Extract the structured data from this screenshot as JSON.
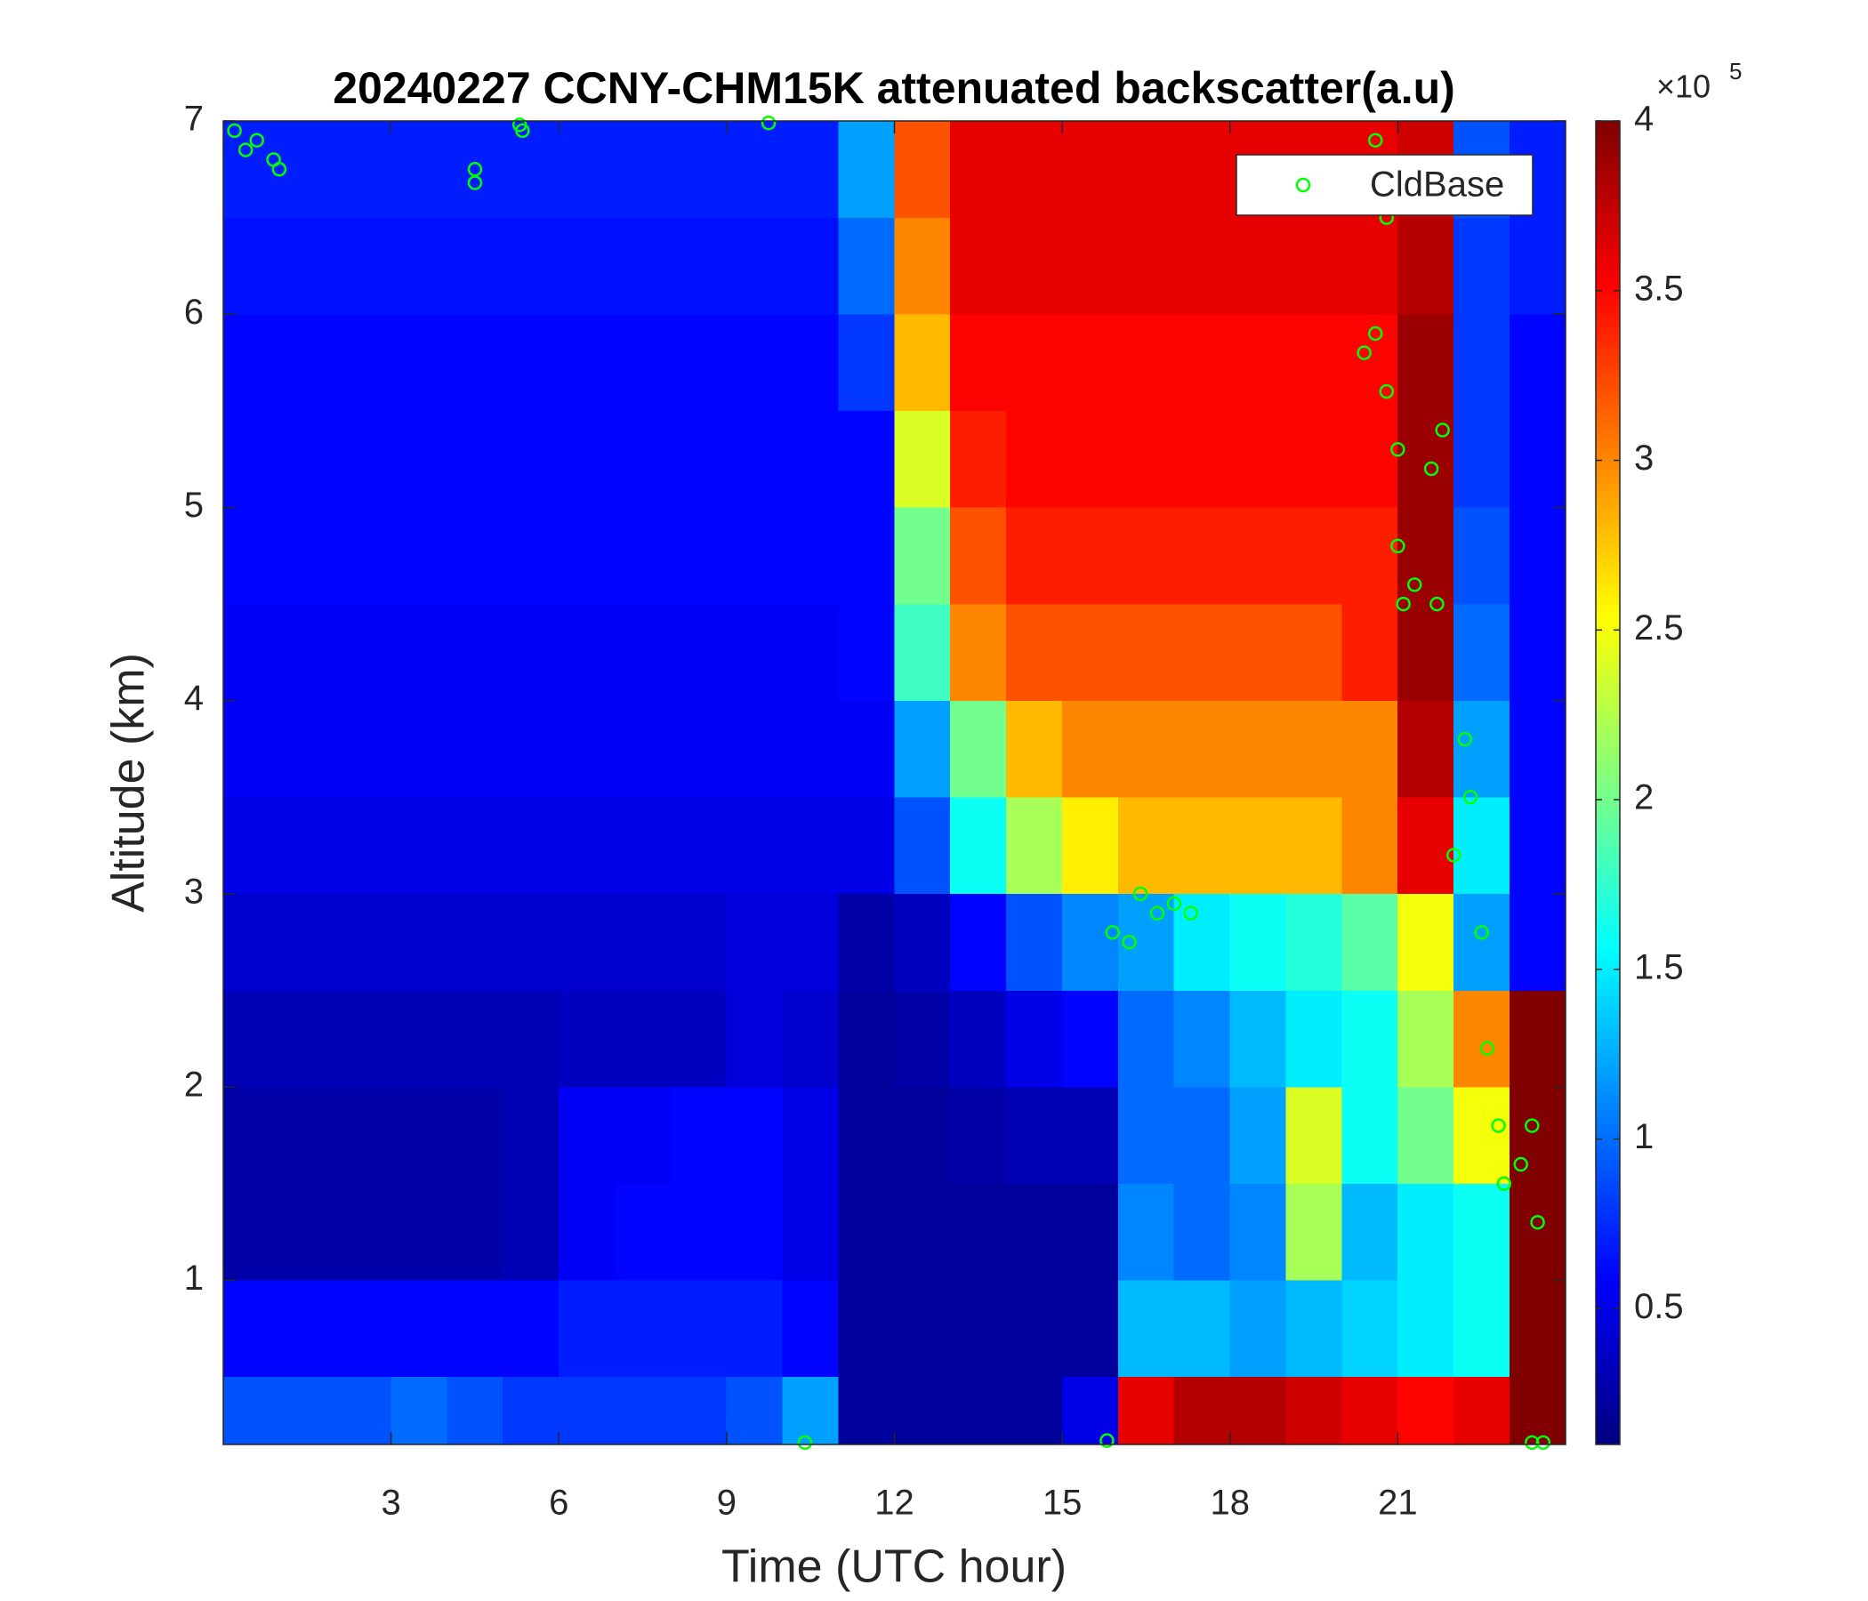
{
  "chart_data": {
    "type": "heatmap",
    "title": "20240227 CCNY-CHM15K attenuated backscatter(a.u)",
    "x_label": "Time (UTC hour)",
    "y_label": "Altitude (km)",
    "xlim": [
      0,
      24
    ],
    "xticks": [
      3,
      6,
      9,
      12,
      15,
      18,
      21
    ],
    "ylim": [
      0.15,
      7
    ],
    "yticks": [
      1,
      2,
      3,
      4,
      5,
      6,
      7
    ],
    "colormap": "jet",
    "clim": [
      0.1,
      4
    ],
    "cticks": [
      0.5,
      1,
      1.5,
      2,
      2.5,
      3,
      3.5,
      4
    ],
    "colorbar_multiplier": {
      "base": "×10",
      "exponent": "5"
    },
    "xbins": [
      0,
      1,
      2,
      3,
      4,
      5,
      6,
      7,
      8,
      9,
      10,
      11,
      12,
      13,
      14,
      15,
      16,
      17,
      18,
      19,
      20,
      21,
      22,
      23,
      24
    ],
    "ybins": [
      0.15,
      0.5,
      1,
      1.5,
      2,
      2.5,
      3,
      3.5,
      4,
      4.5,
      5,
      5.5,
      6,
      6.5,
      7
    ],
    "z": [
      [
        0.9,
        0.9,
        0.9,
        1.0,
        0.9,
        0.8,
        0.8,
        0.8,
        0.8,
        0.9,
        1.2,
        0.2,
        0.2,
        0.2,
        0.2,
        0.5,
        3.6,
        3.8,
        3.8,
        3.7,
        3.6,
        3.5,
        3.6,
        4
      ],
      [
        0.6,
        0.6,
        0.6,
        0.6,
        0.6,
        0.6,
        0.7,
        0.7,
        0.7,
        0.7,
        0.6,
        0.2,
        0.2,
        0.2,
        0.2,
        0.2,
        1.3,
        1.3,
        1.2,
        1.3,
        1.4,
        1.5,
        1.6,
        4
      ],
      [
        0.25,
        0.25,
        0.25,
        0.25,
        0.25,
        0.3,
        0.55,
        0.6,
        0.6,
        0.6,
        0.5,
        0.2,
        0.2,
        0.2,
        0.2,
        0.2,
        1.1,
        1.0,
        1.1,
        2.2,
        1.3,
        1.5,
        1.6,
        4
      ],
      [
        0.25,
        0.25,
        0.25,
        0.25,
        0.25,
        0.3,
        0.55,
        0.55,
        0.6,
        0.6,
        0.5,
        0.2,
        0.2,
        0.25,
        0.3,
        0.3,
        1.0,
        1.0,
        1.2,
        2.4,
        1.6,
        2.0,
        2.5,
        4
      ],
      [
        0.3,
        0.3,
        0.3,
        0.3,
        0.3,
        0.3,
        0.35,
        0.35,
        0.35,
        0.45,
        0.4,
        0.2,
        0.25,
        0.35,
        0.5,
        0.6,
        1.0,
        1.1,
        1.3,
        1.5,
        1.6,
        2.2,
        3.0,
        4
      ],
      [
        0.4,
        0.4,
        0.4,
        0.4,
        0.4,
        0.4,
        0.4,
        0.4,
        0.4,
        0.45,
        0.45,
        0.25,
        0.35,
        0.6,
        0.9,
        1.1,
        1.2,
        1.5,
        1.6,
        1.7,
        1.9,
        2.5,
        1.2,
        0.6
      ],
      [
        0.5,
        0.5,
        0.5,
        0.5,
        0.5,
        0.5,
        0.5,
        0.5,
        0.5,
        0.5,
        0.5,
        0.5,
        0.9,
        1.6,
        2.2,
        2.6,
        2.8,
        2.8,
        2.8,
        2.8,
        3.0,
        3.6,
        1.5,
        0.6
      ],
      [
        0.55,
        0.55,
        0.55,
        0.55,
        0.55,
        0.55,
        0.55,
        0.55,
        0.55,
        0.55,
        0.55,
        0.55,
        1.2,
        2.0,
        2.8,
        3.0,
        3.0,
        3.0,
        3.0,
        3.0,
        3.0,
        3.8,
        1.2,
        0.6
      ],
      [
        0.55,
        0.55,
        0.55,
        0.55,
        0.55,
        0.55,
        0.55,
        0.55,
        0.55,
        0.55,
        0.55,
        0.6,
        1.8,
        3.0,
        3.2,
        3.2,
        3.2,
        3.2,
        3.2,
        3.2,
        3.4,
        3.9,
        1.0,
        0.6
      ],
      [
        0.6,
        0.6,
        0.6,
        0.6,
        0.6,
        0.6,
        0.6,
        0.6,
        0.6,
        0.6,
        0.6,
        0.6,
        2.0,
        3.2,
        3.4,
        3.4,
        3.4,
        3.4,
        3.4,
        3.4,
        3.4,
        3.9,
        0.9,
        0.6
      ],
      [
        0.6,
        0.6,
        0.6,
        0.6,
        0.6,
        0.6,
        0.6,
        0.6,
        0.6,
        0.6,
        0.6,
        0.6,
        2.4,
        3.4,
        3.5,
        3.5,
        3.5,
        3.5,
        3.5,
        3.5,
        3.5,
        3.9,
        0.8,
        0.6
      ],
      [
        0.6,
        0.6,
        0.6,
        0.6,
        0.6,
        0.6,
        0.6,
        0.6,
        0.6,
        0.6,
        0.6,
        0.8,
        2.8,
        3.5,
        3.5,
        3.5,
        3.5,
        3.5,
        3.5,
        3.5,
        3.5,
        3.9,
        0.8,
        0.6
      ],
      [
        0.65,
        0.65,
        0.65,
        0.65,
        0.65,
        0.65,
        0.65,
        0.65,
        0.65,
        0.65,
        0.65,
        1.0,
        3.0,
        3.6,
        3.6,
        3.6,
        3.6,
        3.6,
        3.6,
        3.6,
        3.6,
        3.8,
        0.8,
        0.7
      ],
      [
        0.7,
        0.7,
        0.7,
        0.7,
        0.7,
        0.7,
        0.7,
        0.7,
        0.7,
        0.7,
        0.7,
        1.2,
        3.2,
        3.6,
        3.6,
        3.6,
        3.6,
        3.6,
        3.6,
        3.6,
        3.6,
        3.7,
        0.9,
        0.7
      ]
    ],
    "series": [
      {
        "name": "CldBase",
        "color": "#00ff00",
        "x": [
          0.2,
          0.4,
          0.6,
          0.9,
          1.0,
          4.5,
          4.5,
          5.3,
          5.35,
          9.75,
          10.4,
          15.8,
          15.9,
          16.2,
          16.4,
          16.7,
          17.0,
          17.3,
          20.4,
          20.6,
          20.8,
          20.6,
          20.8,
          21.0,
          21.0,
          21.1,
          21.3,
          21.6,
          21.7,
          21.8,
          22.0,
          22.2,
          22.3,
          22.5,
          22.6,
          22.8,
          22.9,
          23.2,
          23.4,
          23.5,
          23.4,
          23.6
        ],
        "y": [
          6.95,
          6.85,
          6.9,
          6.8,
          6.75,
          6.75,
          6.68,
          6.98,
          6.95,
          6.99,
          0.16,
          0.17,
          2.8,
          2.75,
          3.0,
          2.9,
          2.95,
          2.9,
          5.8,
          5.9,
          5.6,
          6.9,
          6.5,
          5.3,
          4.8,
          4.5,
          4.6,
          5.2,
          4.5,
          5.4,
          3.2,
          3.8,
          3.5,
          2.8,
          2.2,
          1.8,
          1.5,
          1.6,
          1.8,
          1.3,
          0.16,
          0.16
        ]
      }
    ],
    "legend": "upper right"
  }
}
